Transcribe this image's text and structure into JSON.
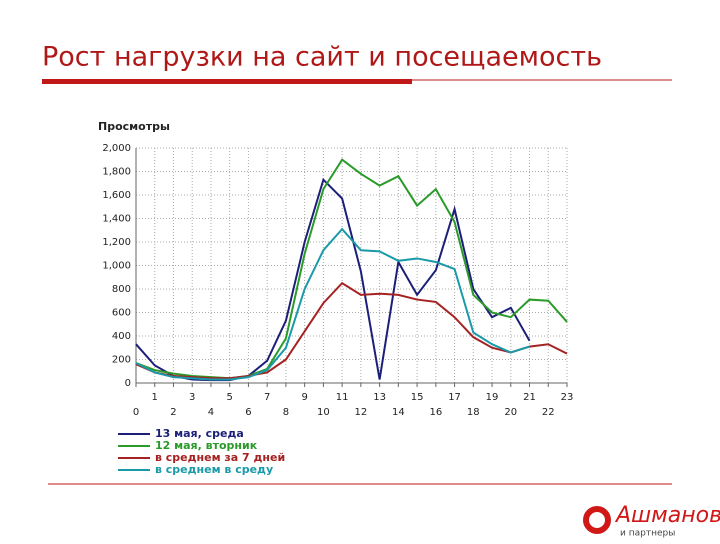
{
  "header": {
    "title": "Рост нагрузки на сайт и посещаемость"
  },
  "chart_data": {
    "type": "line",
    "y_label": "Просмотры",
    "x": [
      0,
      1,
      2,
      3,
      4,
      5,
      6,
      7,
      8,
      9,
      10,
      11,
      12,
      13,
      14,
      15,
      16,
      17,
      18,
      19,
      20,
      21,
      22,
      23
    ],
    "xlim": [
      0,
      23
    ],
    "xticks": [
      0,
      1,
      2,
      3,
      4,
      5,
      6,
      7,
      8,
      9,
      10,
      11,
      12,
      13,
      14,
      15,
      16,
      17,
      18,
      19,
      20,
      21,
      22,
      23
    ],
    "ylim": [
      0,
      2000
    ],
    "yticks": [
      0,
      200,
      400,
      600,
      800,
      {
        "value": 1000,
        "label": "1,000"
      },
      {
        "value": 1200,
        "label": "1,200"
      },
      {
        "value": 1400,
        "label": "1,400"
      },
      {
        "value": 1600,
        "label": "1,600"
      },
      {
        "value": 1800,
        "label": "1,800"
      },
      {
        "value": 2000,
        "label": "2,000"
      }
    ],
    "grid": true,
    "series": [
      {
        "name": "13 мая, среда",
        "color": "#1c1f78",
        "values": [
          330,
          150,
          60,
          30,
          25,
          25,
          60,
          190,
          530,
          1200,
          1730,
          1570,
          950,
          30,
          1030,
          750,
          960,
          1480,
          800,
          560,
          640,
          360,
          null,
          null
        ]
      },
      {
        "name": "12 мая, вторник",
        "color": "#2a9a2a",
        "values": [
          170,
          110,
          80,
          60,
          50,
          40,
          60,
          120,
          380,
          1100,
          1650,
          1900,
          1780,
          1680,
          1760,
          1510,
          1650,
          1370,
          750,
          600,
          560,
          710,
          700,
          520
        ]
      },
      {
        "name": "в среднем за 7 дней",
        "color": "#a52222",
        "values": [
          160,
          90,
          60,
          50,
          40,
          40,
          60,
          90,
          200,
          440,
          680,
          850,
          750,
          760,
          750,
          710,
          690,
          560,
          390,
          300,
          260,
          310,
          330,
          250
        ]
      },
      {
        "name": "в среднем в среду",
        "color": "#1a9aa8",
        "values": [
          170,
          90,
          50,
          40,
          30,
          30,
          50,
          110,
          300,
          800,
          1130,
          1310,
          1130,
          1120,
          1040,
          1060,
          1030,
          970,
          430,
          330,
          260,
          310,
          null,
          null
        ]
      }
    ]
  },
  "logo": {
    "name": "Ашманов",
    "sub": "и партнеры"
  }
}
